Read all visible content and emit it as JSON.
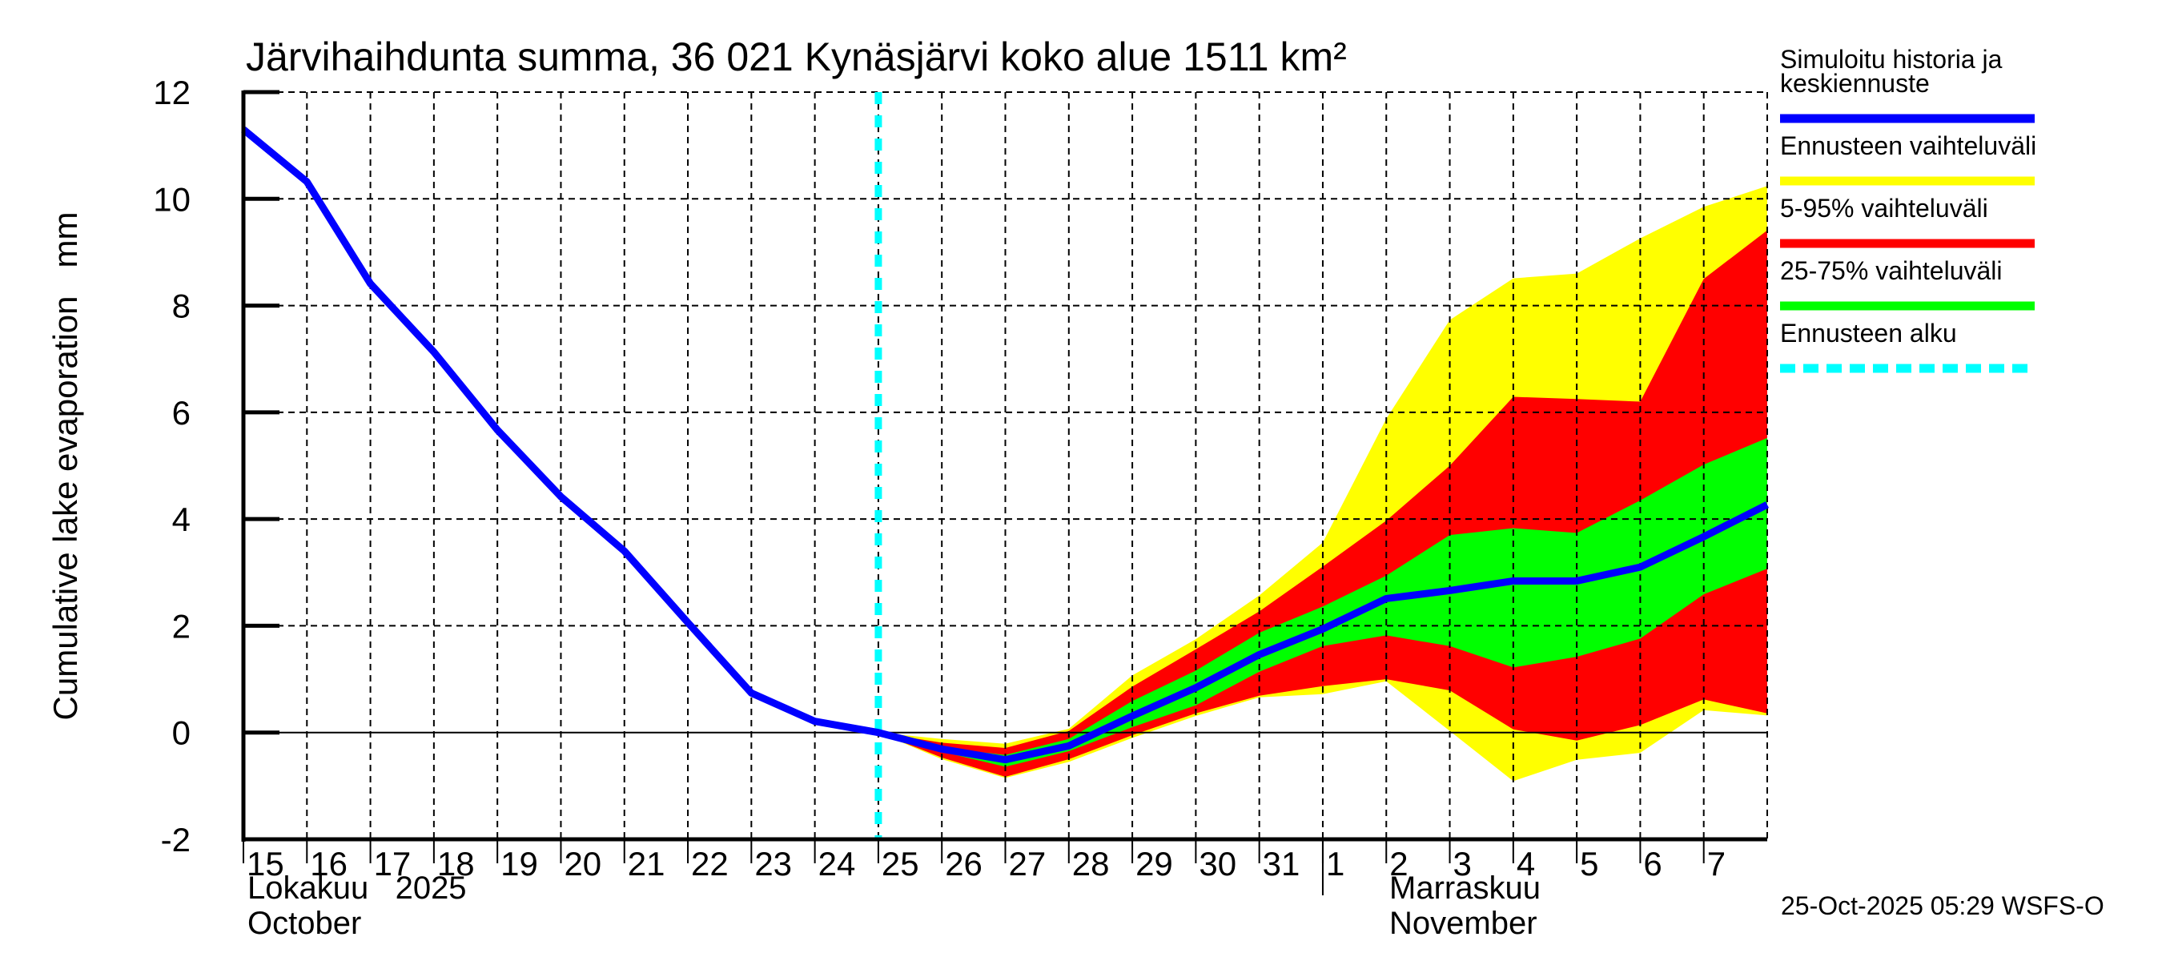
{
  "chart_data": {
    "type": "area",
    "title": "Järvihaihdunta summa, 36 021 Kynäsjärvi koko alue 1511 km²",
    "ylabel": "Cumulative lake evaporation   mm",
    "xlabel": "",
    "ylim": [
      -2,
      12
    ],
    "yticks": [
      -2,
      0,
      2,
      4,
      6,
      8,
      10,
      12
    ],
    "grid": true,
    "legend_position": "right",
    "x_dates": [
      "2025-10-15",
      "2025-10-16",
      "2025-10-17",
      "2025-10-18",
      "2025-10-19",
      "2025-10-20",
      "2025-10-21",
      "2025-10-22",
      "2025-10-23",
      "2025-10-24",
      "2025-10-25",
      "2025-10-26",
      "2025-10-27",
      "2025-10-28",
      "2025-10-29",
      "2025-10-30",
      "2025-10-31",
      "2025-11-01",
      "2025-11-02",
      "2025-11-03",
      "2025-11-04",
      "2025-11-05",
      "2025-11-06",
      "2025-11-07",
      "2025-11-08"
    ],
    "xtick_labels": [
      "15",
      "16",
      "17",
      "18",
      "19",
      "20",
      "21",
      "22",
      "23",
      "24",
      "25",
      "26",
      "27",
      "28",
      "29",
      "30",
      "31",
      "1",
      "2",
      "3",
      "4",
      "5",
      "6",
      "7"
    ],
    "month_labels": [
      {
        "line1": "Lokakuu   2025",
        "line2": "October"
      },
      {
        "line1": "Marraskuu",
        "line2": "November"
      }
    ],
    "forecast_start": "2025-10-25",
    "series": [
      {
        "name": "Simuloitu historia ja keskiennuste",
        "kind": "line",
        "color": "#0000ff",
        "values": [
          11.3,
          10.32,
          8.41,
          7.13,
          5.67,
          4.42,
          3.4,
          2.06,
          0.74,
          0.21,
          0.0,
          -0.31,
          -0.51,
          -0.25,
          0.31,
          0.84,
          1.46,
          1.94,
          2.51,
          2.66,
          2.84,
          2.84,
          3.1,
          3.67,
          4.27
        ]
      },
      {
        "name": "Ennusteen vaihteluväli",
        "kind": "band",
        "color": "#ffff00",
        "start_index": 10,
        "upper": [
          0.0,
          -0.12,
          -0.21,
          0.07,
          1.07,
          1.75,
          2.57,
          3.56,
          5.88,
          7.73,
          8.51,
          8.6,
          9.26,
          9.85,
          10.24
        ],
        "lower": [
          0.0,
          -0.5,
          -0.85,
          -0.55,
          -0.1,
          0.31,
          0.66,
          0.72,
          0.96,
          0.03,
          -0.91,
          -0.51,
          -0.38,
          0.42,
          0.32
        ]
      },
      {
        "name": "5-95% vaihteluväli",
        "kind": "band",
        "color": "#ff0000",
        "start_index": 10,
        "upper": [
          0.0,
          -0.19,
          -0.29,
          0.03,
          0.86,
          1.56,
          2.27,
          3.11,
          3.97,
          5.0,
          6.29,
          6.25,
          6.2,
          8.5,
          9.41
        ],
        "lower": [
          0.0,
          -0.47,
          -0.83,
          -0.5,
          -0.05,
          0.36,
          0.69,
          0.87,
          1.0,
          0.79,
          0.06,
          -0.15,
          0.14,
          0.62,
          0.36
        ]
      },
      {
        "name": "25-75% vaihteluväli",
        "kind": "band",
        "color": "#00ff00",
        "start_index": 10,
        "upper": [
          0.0,
          -0.28,
          -0.42,
          -0.12,
          0.59,
          1.16,
          1.87,
          2.36,
          2.94,
          3.7,
          3.83,
          3.74,
          4.35,
          5.02,
          5.52
        ],
        "lower": [
          0.0,
          -0.36,
          -0.64,
          -0.35,
          0.1,
          0.51,
          1.14,
          1.62,
          1.82,
          1.62,
          1.22,
          1.42,
          1.76,
          2.59,
          3.07
        ]
      },
      {
        "name": "Ennusteen alku",
        "kind": "vline",
        "color": "#00ffff",
        "at": "2025-10-25"
      }
    ],
    "legend": [
      {
        "label": "Simuloitu historia ja\nkeskiennuste",
        "color": "#0000ff",
        "style": "solid"
      },
      {
        "label": "Ennusteen vaihteluväli",
        "color": "#ffff00",
        "style": "solid"
      },
      {
        "label": "5-95% vaihteluväli",
        "color": "#ff0000",
        "style": "solid"
      },
      {
        "label": "25-75% vaihteluväli",
        "color": "#00ff00",
        "style": "solid"
      },
      {
        "label": "Ennusteen alku",
        "color": "#00ffff",
        "style": "dashed"
      }
    ]
  },
  "footer": {
    "timestamp": "25-Oct-2025 05:29 WSFS-O"
  }
}
